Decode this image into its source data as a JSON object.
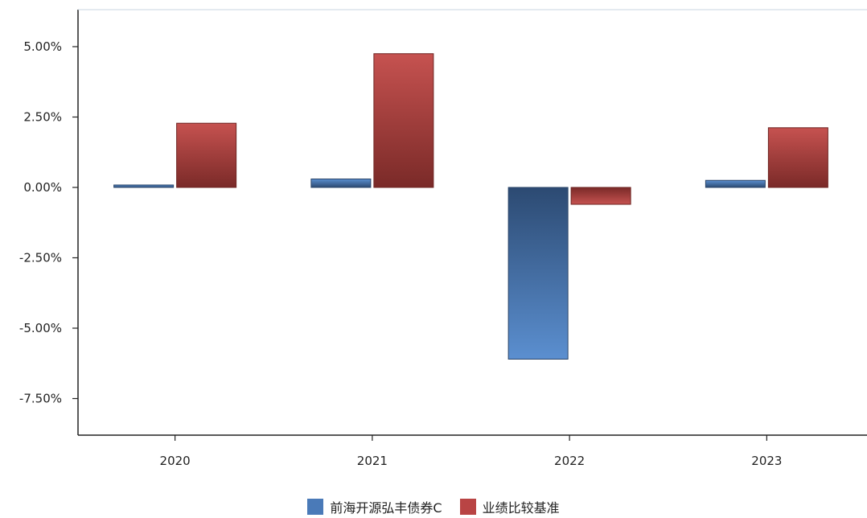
{
  "chart_data": {
    "type": "bar",
    "categories": [
      "2020",
      "2021",
      "2022",
      "2023"
    ],
    "series": [
      {
        "name": "前海开源弘丰债券C",
        "values": [
          0.08,
          0.3,
          -6.1,
          0.25
        ],
        "color": "#4a7ab8"
      },
      {
        "name": "业绩比较基准",
        "values": [
          2.28,
          4.75,
          -0.6,
          2.12
        ],
        "color": "#b94444"
      }
    ],
    "yticks": [
      "5.00%",
      "2.50%",
      "0.00%",
      "-2.50%",
      "-5.00%",
      "-7.50%"
    ],
    "ylim": [
      -8.75,
      6.5
    ],
    "unit": "%",
    "grid": false,
    "legend_position": "bottom-center"
  }
}
